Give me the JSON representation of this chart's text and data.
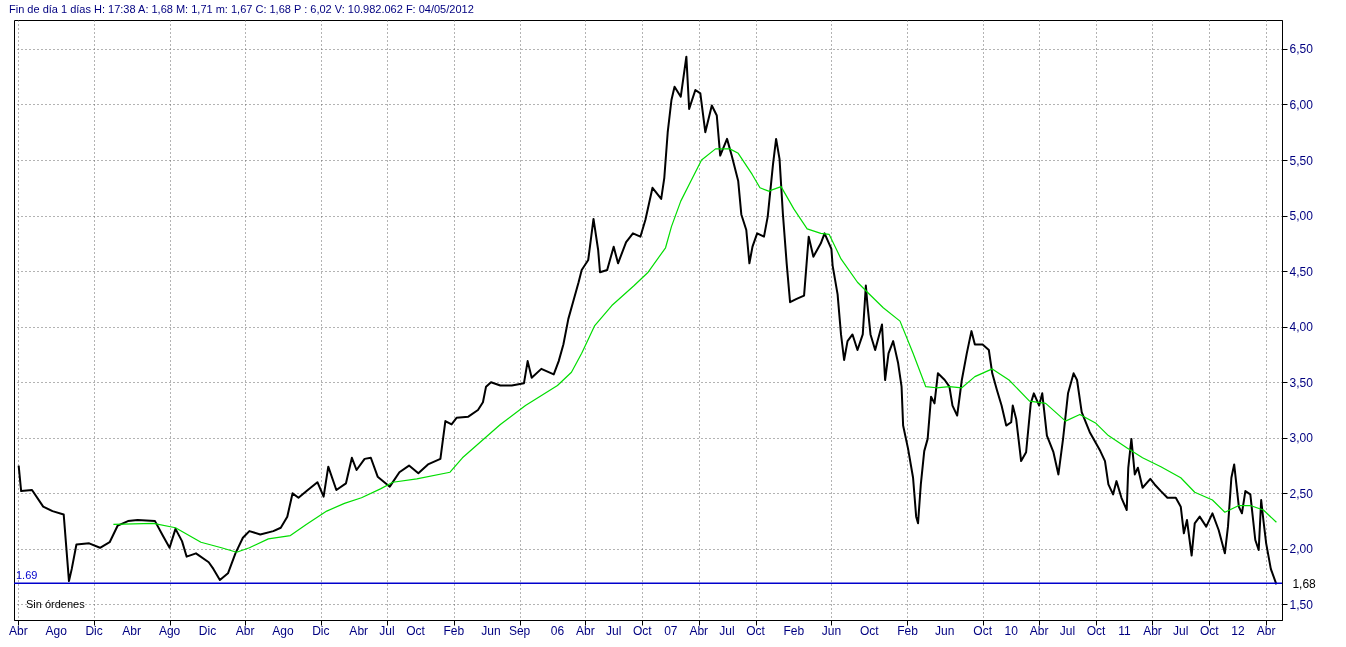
{
  "chart_data": {
    "type": "line",
    "title": "Fin de día 1 días  H: 17:38  A: 1,68  M: 1,71  m: 1,67  C: 1,68  P : 6,02  V: 10.982.062  F: 04/05/2012",
    "series": [
      {
        "color": "#000000",
        "x": [
          "2001-04-02",
          "2001-04-10",
          "2001-05-15",
          "2001-06-20",
          "2001-07-20",
          "2001-08-25",
          "2001-09-11",
          "2001-09-20",
          "2001-10-05",
          "2001-11-15",
          "2001-12-20",
          "2002-01-20",
          "2002-02-15",
          "2002-03-20",
          "2002-04-20",
          "2002-06-15",
          "2002-07-10",
          "2002-08-01",
          "2002-08-20",
          "2002-09-10",
          "2002-09-25",
          "2002-10-25",
          "2002-12-05",
          "2002-12-20",
          "2003-01-10",
          "2003-02-05",
          "2003-03-01",
          "2003-03-25",
          "2003-04-15",
          "2003-05-20",
          "2003-07-01",
          "2003-07-25",
          "2003-08-15",
          "2003-09-01",
          "2003-09-20",
          "2003-10-20",
          "2003-11-20",
          "2003-12-10",
          "2003-12-25",
          "2004-01-20",
          "2004-02-20",
          "2004-03-10",
          "2004-03-25",
          "2004-04-20",
          "2004-05-10",
          "2004-06-01",
          "2004-07-10",
          "2004-08-10",
          "2004-09-10",
          "2004-10-10",
          "2004-11-10",
          "2004-12-20",
          "2005-01-05",
          "2005-01-25",
          "2005-02-10",
          "2005-03-20",
          "2005-04-20",
          "2005-05-06",
          "2005-05-16",
          "2005-06-01",
          "2005-07-01",
          "2005-08-07",
          "2005-09-15",
          "2005-09-27",
          "2005-10-10",
          "2005-11-10",
          "2005-12-20",
          "2006-01-05",
          "2006-01-20",
          "2006-02-05",
          "2006-02-20",
          "2006-03-10",
          "2006-03-20",
          "2006-04-10",
          "2006-04-27",
          "2006-05-12",
          "2006-05-18",
          "2006-06-10",
          "2006-07-01",
          "2006-07-15",
          "2006-08-10",
          "2006-09-01",
          "2006-09-25",
          "2006-10-11",
          "2006-11-03",
          "2006-12-01",
          "2006-12-11",
          "2006-12-22",
          "2007-01-03",
          "2007-01-13",
          "2007-02-02",
          "2007-02-20",
          "2007-03-01",
          "2007-03-21",
          "2007-04-06",
          "2007-04-22",
          "2007-05-13",
          "2007-05-29",
          "2007-06-09",
          "2007-07-01",
          "2007-07-16",
          "2007-08-06",
          "2007-08-16",
          "2007-09-01",
          "2007-09-11",
          "2007-09-21",
          "2007-10-06",
          "2007-10-28",
          "2007-11-09",
          "2007-11-26",
          "2007-12-06",
          "2007-12-17",
          "2007-12-28",
          "2008-01-09",
          "2008-01-20",
          "2008-02-10",
          "2008-03-05",
          "2008-03-20",
          "2008-04-04",
          "2008-04-28",
          "2008-05-10",
          "2008-06-01",
          "2008-06-05",
          "2008-06-21",
          "2008-07-02",
          "2008-07-12",
          "2008-07-23",
          "2008-08-08",
          "2008-08-24",
          "2008-09-10",
          "2008-09-20",
          "2008-09-25",
          "2008-10-05",
          "2008-10-20",
          "2008-11-11",
          "2008-11-21",
          "2008-12-02",
          "2008-12-17",
          "2009-01-02",
          "2009-01-13",
          "2009-01-18",
          "2009-02-03",
          "2009-02-19",
          "2009-03-01",
          "2009-03-07",
          "2009-03-16",
          "2009-03-27",
          "2009-04-07",
          "2009-04-18",
          "2009-04-29",
          "2009-05-10",
          "2009-06-01",
          "2009-06-16",
          "2009-06-26",
          "2009-07-11",
          "2009-07-26",
          "2009-08-11",
          "2009-08-26",
          "2009-09-06",
          "2009-10-01",
          "2009-10-21",
          "2009-11-01",
          "2009-11-16",
          "2009-12-01",
          "2009-12-16",
          "2010-01-01",
          "2010-01-06",
          "2010-01-17",
          "2010-02-02",
          "2010-02-18",
          "2010-03-05",
          "2010-03-15",
          "2010-04-01",
          "2010-04-11",
          "2010-04-26",
          "2010-05-17",
          "2010-06-02",
          "2010-06-17",
          "2010-07-03",
          "2010-07-21",
          "2010-08-01",
          "2010-08-16",
          "2010-09-11",
          "2010-10-01",
          "2010-10-15",
          "2010-10-30",
          "2010-11-10",
          "2010-11-25",
          "2010-12-06",
          "2010-12-22",
          "2011-01-08",
          "2011-01-13",
          "2011-01-23",
          "2011-02-03",
          "2011-02-13",
          "2011-02-28",
          "2011-03-25",
          "2011-04-08",
          "2011-04-28",
          "2011-05-19",
          "2011-06-15",
          "2011-07-01",
          "2011-07-11",
          "2011-07-21",
          "2011-08-05",
          "2011-08-15",
          "2011-08-31",
          "2011-09-21",
          "2011-10-11",
          "2011-10-31",
          "2011-11-20",
          "2011-11-30",
          "2011-12-11",
          "2011-12-20",
          "2012-01-04",
          "2012-01-14",
          "2012-01-25",
          "2012-02-10",
          "2012-02-26",
          "2012-03-08",
          "2012-03-16",
          "2012-03-23",
          "2012-04-01",
          "2012-04-16",
          "2012-05-04"
        ],
        "values": [
          2.75,
          2.52,
          2.53,
          2.38,
          2.34,
          2.31,
          1.71,
          1.82,
          2.04,
          2.05,
          2.01,
          2.06,
          2.21,
          2.25,
          2.26,
          2.25,
          2.12,
          2.01,
          2.18,
          2.07,
          1.93,
          1.96,
          1.88,
          1.82,
          1.72,
          1.78,
          1.96,
          2.1,
          2.16,
          2.13,
          2.16,
          2.19,
          2.29,
          2.5,
          2.46,
          2.53,
          2.6,
          2.47,
          2.74,
          2.53,
          2.59,
          2.82,
          2.71,
          2.81,
          2.82,
          2.65,
          2.56,
          2.69,
          2.75,
          2.68,
          2.76,
          2.81,
          3.15,
          3.12,
          3.18,
          3.19,
          3.25,
          3.32,
          3.46,
          3.5,
          3.47,
          3.47,
          3.49,
          3.69,
          3.54,
          3.62,
          3.57,
          3.69,
          3.84,
          4.07,
          4.22,
          4.4,
          4.51,
          4.6,
          4.97,
          4.69,
          4.49,
          4.51,
          4.72,
          4.57,
          4.76,
          4.84,
          4.81,
          4.96,
          5.25,
          5.15,
          5.34,
          5.75,
          6.04,
          6.16,
          6.07,
          6.43,
          5.96,
          6.13,
          6.1,
          5.75,
          5.99,
          5.9,
          5.54,
          5.69,
          5.54,
          5.31,
          5.01,
          4.87,
          4.57,
          4.72,
          4.84,
          4.81,
          4.99,
          5.46,
          5.69,
          5.51,
          5.01,
          4.57,
          4.22,
          4.25,
          4.28,
          4.81,
          4.63,
          4.75,
          4.84,
          4.7,
          4.55,
          4.29,
          3.93,
          3.7,
          3.87,
          3.93,
          3.79,
          3.93,
          4.37,
          4.2,
          3.93,
          3.79,
          4.02,
          3.52,
          3.76,
          3.87,
          3.67,
          3.46,
          3.11,
          2.9,
          2.64,
          2.29,
          2.23,
          2.58,
          2.88,
          2.99,
          3.37,
          3.31,
          3.58,
          3.52,
          3.46,
          3.29,
          3.2,
          3.52,
          3.76,
          3.96,
          3.84,
          3.84,
          3.79,
          3.58,
          3.43,
          3.29,
          3.11,
          3.14,
          3.29,
          3.17,
          2.79,
          2.87,
          3.31,
          3.4,
          3.29,
          3.4,
          3.02,
          2.87,
          2.67,
          2.99,
          3.4,
          3.58,
          3.52,
          3.23,
          3.05,
          2.95,
          2.88,
          2.79,
          2.58,
          2.49,
          2.61,
          2.46,
          2.35,
          2.73,
          2.99,
          2.67,
          2.73,
          2.55,
          2.63,
          2.58,
          2.52,
          2.46,
          2.46,
          2.38,
          2.14,
          2.26,
          1.94,
          2.23,
          2.29,
          2.2,
          2.32,
          2.17,
          1.96,
          2.2,
          2.64,
          2.76,
          2.38,
          2.32,
          2.52,
          2.49,
          2.08,
          1.99,
          2.44,
          2.26,
          2.05,
          1.82,
          1.68
        ]
      },
      {
        "color": "#00dd00",
        "x": [
          "2002-02-01",
          "2002-06-10",
          "2002-08-20",
          "2002-11-10",
          "2003-01-15",
          "2003-03-05",
          "2003-04-15",
          "2003-06-15",
          "2003-08-25",
          "2003-10-15",
          "2003-12-20",
          "2004-02-15",
          "2004-04-10",
          "2004-06-10",
          "2004-07-20",
          "2004-10-05",
          "2005-01-20",
          "2005-03-01",
          "2005-07-01",
          "2005-09-20",
          "2006-01-01",
          "2006-02-15",
          "2006-03-20",
          "2006-05-01",
          "2006-06-25",
          "2006-09-05",
          "2006-10-20",
          "2006-12-15",
          "2007-01-03",
          "2007-02-02",
          "2007-03-01",
          "2007-04-10",
          "2007-05-25",
          "2007-07-10",
          "2007-08-06",
          "2007-09-20",
          "2007-10-15",
          "2007-11-12",
          "2007-12-22",
          "2008-02-01",
          "2008-03-15",
          "2008-04-28",
          "2008-05-25",
          "2008-07-02",
          "2008-08-24",
          "2008-09-25",
          "2008-11-15",
          "2009-01-08",
          "2009-02-19",
          "2009-04-01",
          "2009-05-05",
          "2009-06-16",
          "2009-07-26",
          "2009-09-06",
          "2009-11-01",
          "2009-12-25",
          "2010-03-01",
          "2010-04-22",
          "2010-06-25",
          "2010-08-10",
          "2010-10-01",
          "2010-11-10",
          "2011-01-08",
          "2011-02-28",
          "2011-04-28",
          "2011-07-01",
          "2011-08-15",
          "2011-10-11",
          "2011-11-20",
          "2012-01-04",
          "2012-02-10",
          "2012-03-23",
          "2012-05-04"
        ],
        "values": [
          2.22,
          2.23,
          2.19,
          2.06,
          2.01,
          1.97,
          2.01,
          2.09,
          2.12,
          2.22,
          2.34,
          2.41,
          2.46,
          2.54,
          2.6,
          2.63,
          2.69,
          2.82,
          3.12,
          3.29,
          3.47,
          3.59,
          3.76,
          4.01,
          4.19,
          4.37,
          4.49,
          4.71,
          4.9,
          5.13,
          5.28,
          5.5,
          5.6,
          5.6,
          5.56,
          5.37,
          5.25,
          5.22,
          5.26,
          5.06,
          4.88,
          4.84,
          4.83,
          4.61,
          4.4,
          4.31,
          4.17,
          4.05,
          3.76,
          3.46,
          3.45,
          3.46,
          3.45,
          3.55,
          3.62,
          3.52,
          3.33,
          3.31,
          3.15,
          3.21,
          3.13,
          3.02,
          2.91,
          2.82,
          2.74,
          2.64,
          2.51,
          2.44,
          2.33,
          2.39,
          2.39,
          2.35,
          2.24
        ]
      }
    ],
    "xlim": [
      "2001-03-18",
      "2012-05-22"
    ],
    "xticks": [
      {
        "value": "2001-04",
        "label": "Abr"
      },
      {
        "value": "2001-08",
        "label": "Ago"
      },
      {
        "value": "2001-12",
        "label": "Dic"
      },
      {
        "value": "2002-04",
        "label": "Abr"
      },
      {
        "value": "2002-08",
        "label": "Ago"
      },
      {
        "value": "2002-12",
        "label": "Dic"
      },
      {
        "value": "2003-04",
        "label": "Abr"
      },
      {
        "value": "2003-08",
        "label": "Ago"
      },
      {
        "value": "2003-12",
        "label": "Dic"
      },
      {
        "value": "2004-04",
        "label": "Abr"
      },
      {
        "value": "2004-07",
        "label": "Jul"
      },
      {
        "value": "2004-10",
        "label": "Oct"
      },
      {
        "value": "2005-02",
        "label": "Feb"
      },
      {
        "value": "2005-06",
        "label": "Jun"
      },
      {
        "value": "2005-09",
        "label": "Sep"
      },
      {
        "value": "2006-01",
        "label": "06"
      },
      {
        "value": "2006-04",
        "label": "Abr"
      },
      {
        "value": "2006-07",
        "label": "Jul"
      },
      {
        "value": "2006-10",
        "label": "Oct"
      },
      {
        "value": "2007-01",
        "label": "07"
      },
      {
        "value": "2007-04",
        "label": "Abr"
      },
      {
        "value": "2007-07",
        "label": "Jul"
      },
      {
        "value": "2007-10",
        "label": "Oct"
      },
      {
        "value": "2008-02",
        "label": "Feb"
      },
      {
        "value": "2008-06",
        "label": "Jun"
      },
      {
        "value": "2008-10",
        "label": "Oct"
      },
      {
        "value": "2009-02",
        "label": "Feb"
      },
      {
        "value": "2009-06",
        "label": "Jun"
      },
      {
        "value": "2009-10",
        "label": "Oct"
      },
      {
        "value": "2010-01",
        "label": "10"
      },
      {
        "value": "2010-04",
        "label": "Abr"
      },
      {
        "value": "2010-07",
        "label": "Jul"
      },
      {
        "value": "2010-10",
        "label": "Oct"
      },
      {
        "value": "2011-01",
        "label": "11"
      },
      {
        "value": "2011-04",
        "label": "Abr"
      },
      {
        "value": "2011-07",
        "label": "Jul"
      },
      {
        "value": "2011-10",
        "label": "Oct"
      },
      {
        "value": "2012-01",
        "label": "12"
      },
      {
        "value": "2012-04",
        "label": "Abr"
      }
    ],
    "ylim": [
      1.36,
      6.76
    ],
    "yticks": [
      {
        "value": 1.5,
        "label": "1,50"
      },
      {
        "value": 2,
        "label": "2,00"
      },
      {
        "value": 2.5,
        "label": "2,50"
      },
      {
        "value": 3,
        "label": "3,00"
      },
      {
        "value": 3.5,
        "label": "3,50"
      },
      {
        "value": 4,
        "label": "4,00"
      },
      {
        "value": 4.5,
        "label": "4,50"
      },
      {
        "value": 5,
        "label": "5,00"
      },
      {
        "value": 5.5,
        "label": "5,50"
      },
      {
        "value": 6,
        "label": "6,00"
      },
      {
        "value": 6.5,
        "label": "6,50"
      }
    ],
    "ref_lines": [
      {
        "axis": "y",
        "value": 1.69,
        "label": "1.69",
        "color": "#0000cc"
      }
    ],
    "annotations": [
      {
        "text": "1,68",
        "x": "2012-05-04",
        "y": 1.68
      },
      "Sin órdenes"
    ],
    "grid": true,
    "legend": false
  }
}
